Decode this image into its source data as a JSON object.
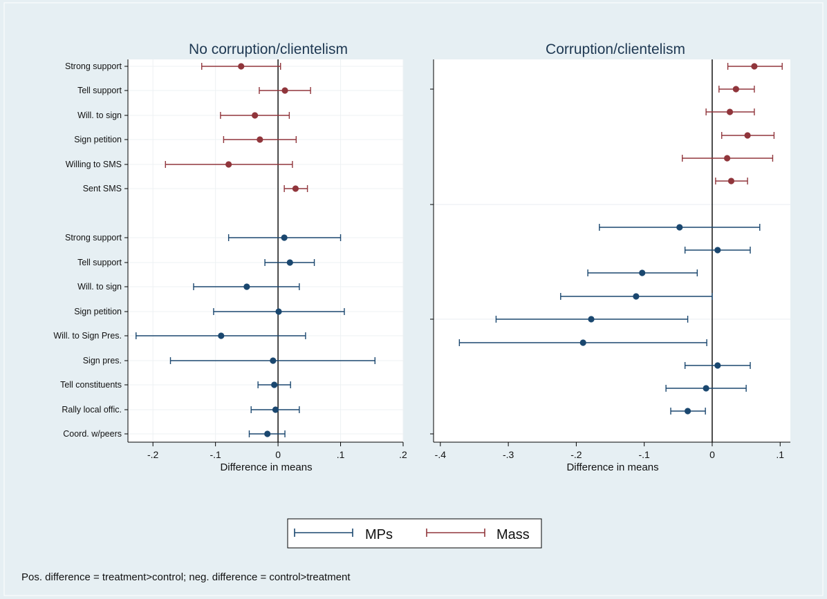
{
  "colors": {
    "mps": "#1a476f",
    "mass": "#90353b"
  },
  "chart_data": [
    {
      "type": "scatter",
      "title": "No corruption/clientelism",
      "xlabel": "Difference in means",
      "xlim": [
        -0.24,
        0.2
      ],
      "xticks": [
        -0.2,
        -0.1,
        0,
        0.1,
        0.2
      ],
      "xtick_labels": [
        "-.2",
        "-.1",
        "0",
        ".1",
        ".2"
      ],
      "ytick_labels": [
        "Strong support",
        "Tell support",
        "Will. to sign",
        "Sign petition",
        "Willing to SMS",
        "Sent SMS",
        "Strong support",
        "Tell support",
        "Will. to sign",
        "Sign petition",
        "Will. to Sign Pres.",
        "Sign pres.",
        "Tell constituents",
        "Rally local offic.",
        "Coord. w/peers"
      ],
      "series": [
        {
          "name": "Mass",
          "points": [
            {
              "label": "Strong support",
              "est": -0.059,
              "lo": -0.122,
              "hi": 0.004
            },
            {
              "label": "Tell support",
              "est": 0.011,
              "lo": -0.03,
              "hi": 0.052
            },
            {
              "label": "Will. to sign",
              "est": -0.037,
              "lo": -0.092,
              "hi": 0.018
            },
            {
              "label": "Sign petition",
              "est": -0.029,
              "lo": -0.087,
              "hi": 0.029
            },
            {
              "label": "Willing to SMS",
              "est": -0.079,
              "lo": -0.18,
              "hi": 0.023
            },
            {
              "label": "Sent SMS",
              "est": 0.028,
              "lo": 0.01,
              "hi": 0.047
            }
          ]
        },
        {
          "name": "MPs",
          "points": [
            {
              "label": "Strong support",
              "est": 0.01,
              "lo": -0.079,
              "hi": 0.1
            },
            {
              "label": "Tell support",
              "est": 0.019,
              "lo": -0.021,
              "hi": 0.058
            },
            {
              "label": "Will. to sign",
              "est": -0.05,
              "lo": -0.135,
              "hi": 0.034
            },
            {
              "label": "Sign petition",
              "est": 0.001,
              "lo": -0.103,
              "hi": 0.106
            },
            {
              "label": "Will. to Sign Pres.",
              "est": -0.091,
              "lo": -0.227,
              "hi": 0.044
            },
            {
              "label": "Sign pres.",
              "est": -0.008,
              "lo": -0.172,
              "hi": 0.155
            },
            {
              "label": "Tell constituents",
              "est": -0.006,
              "lo": -0.032,
              "hi": 0.02
            },
            {
              "label": "Rally local offic.",
              "est": -0.004,
              "lo": -0.043,
              "hi": 0.034
            },
            {
              "label": "Coord. w/peers",
              "est": -0.017,
              "lo": -0.046,
              "hi": 0.011
            }
          ]
        }
      ]
    },
    {
      "type": "scatter",
      "title": "Corruption/clientelism",
      "xlabel": "Difference in means",
      "xlim": [
        -0.41,
        0.115
      ],
      "xticks": [
        -0.4,
        -0.3,
        -0.2,
        -0.1,
        0,
        0.1
      ],
      "xtick_labels": [
        "-.4",
        "-.3",
        "-.2",
        "-.1",
        "0",
        ".1"
      ],
      "series": [
        {
          "name": "Mass",
          "points": [
            {
              "est": 0.062,
              "lo": 0.023,
              "hi": 0.103
            },
            {
              "est": 0.035,
              "lo": 0.01,
              "hi": 0.062
            },
            {
              "est": 0.026,
              "lo": -0.009,
              "hi": 0.062
            },
            {
              "est": 0.052,
              "lo": 0.014,
              "hi": 0.091
            },
            {
              "est": 0.022,
              "lo": -0.044,
              "hi": 0.089
            },
            {
              "est": 0.028,
              "lo": 0.005,
              "hi": 0.052
            }
          ]
        },
        {
          "name": "MPs",
          "points": [
            {
              "est": -0.048,
              "lo": -0.166,
              "hi": 0.07
            },
            {
              "est": 0.008,
              "lo": -0.04,
              "hi": 0.056
            },
            {
              "est": -0.103,
              "lo": -0.183,
              "hi": -0.022
            },
            {
              "est": -0.112,
              "lo": -0.223,
              "hi": 0.0
            },
            {
              "est": -0.178,
              "lo": -0.318,
              "hi": -0.036
            },
            {
              "est": -0.19,
              "lo": -0.372,
              "hi": -0.008
            },
            {
              "est": 0.008,
              "lo": -0.04,
              "hi": 0.056
            },
            {
              "est": -0.009,
              "lo": -0.068,
              "hi": 0.05
            },
            {
              "est": -0.036,
              "lo": -0.061,
              "hi": -0.01
            }
          ]
        }
      ]
    }
  ],
  "legend": {
    "mps": "MPs",
    "mass": "Mass"
  },
  "note": "Pos. difference = treatment>control; neg. difference = control>treatment"
}
